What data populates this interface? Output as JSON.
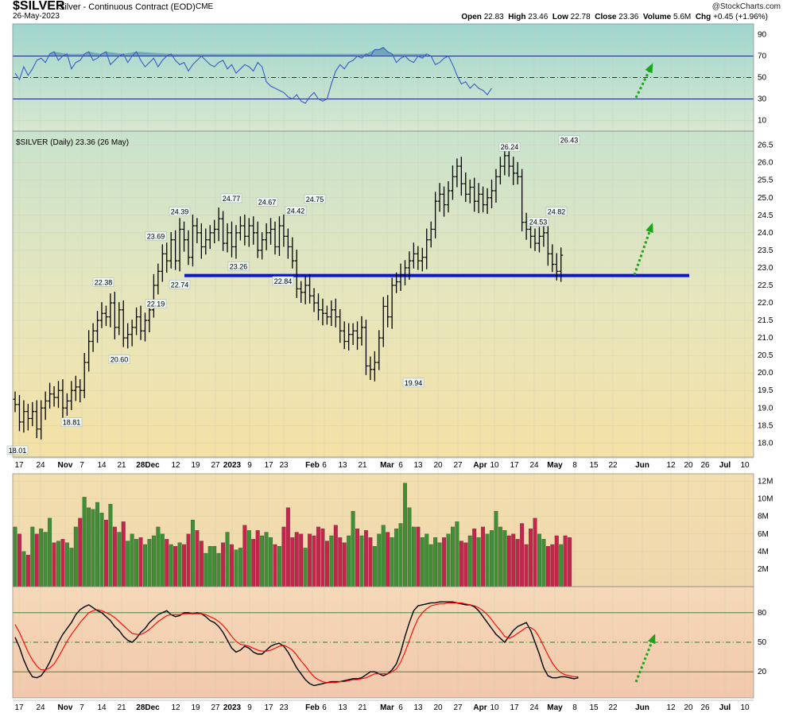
{
  "header": {
    "symbol": "$SILVER",
    "subtitle": "Silver - Continuous Contract (EOD)",
    "exchange": "CME",
    "date": "26-May-2023",
    "copyright": "@StockCharts.com",
    "stats": [
      {
        "label": "Open",
        "value": "22.83"
      },
      {
        "label": "High",
        "value": "23.46"
      },
      {
        "label": "Low",
        "value": "22.78"
      },
      {
        "label": "Close",
        "value": "23.36"
      },
      {
        "label": "Volume",
        "value": "5.6M"
      },
      {
        "label": "Chg",
        "value": "+0.45 (+1.96%)"
      }
    ]
  },
  "chart_data": [
    {
      "type": "line",
      "panel": "indicator",
      "yticks": [
        90,
        70,
        50,
        30,
        10
      ],
      "ylim": [
        0,
        100
      ],
      "reference_lines": [
        70,
        50,
        30
      ],
      "series": [
        {
          "values": [
            54,
            48,
            60,
            52,
            58,
            66,
            68,
            64,
            72,
            74,
            66,
            70,
            72,
            58,
            64,
            66,
            72,
            74,
            66,
            68,
            72,
            74,
            62,
            66,
            70,
            72,
            64,
            70,
            74,
            66,
            60,
            64,
            68,
            60,
            66,
            70,
            72,
            66,
            62,
            64,
            56,
            62,
            66,
            70,
            66,
            62,
            60,
            64,
            66,
            58,
            62,
            54,
            58,
            62,
            60,
            56,
            64,
            60,
            46,
            42,
            40,
            38,
            36,
            32,
            30,
            34,
            28,
            26,
            32,
            36,
            30,
            28,
            30,
            44,
            56,
            62,
            58,
            64,
            66,
            70,
            68,
            72,
            70,
            76,
            76,
            78,
            74,
            72,
            64,
            68,
            70,
            66,
            64,
            70,
            68,
            72,
            70,
            62,
            64,
            68,
            70,
            62,
            52,
            44,
            46,
            40,
            44,
            40,
            38,
            34,
            40
          ]
        }
      ]
    },
    {
      "type": "candlestick",
      "panel": "price",
      "title": "$SILVER (Daily) 23.36 (26 May)",
      "yticks": [
        26.5,
        26.0,
        25.5,
        25.0,
        24.5,
        24.0,
        23.5,
        23.0,
        22.5,
        22.0,
        21.5,
        21.0,
        20.5,
        20.0,
        19.5,
        19.0,
        18.5,
        18.0
      ],
      "ylim": [
        17.6,
        26.9
      ],
      "x_ticks": [
        "17",
        "24",
        "Nov",
        "7",
        "14",
        "21",
        "28Dec",
        "12",
        "19",
        "27",
        "2023",
        "9",
        "17",
        "23",
        "Feb",
        "6",
        "13",
        "21",
        "Mar",
        "6",
        "13",
        "20",
        "27",
        "Apr",
        "10",
        "17",
        "24",
        "May",
        "8",
        "15",
        "22",
        "Jun",
        "12",
        "20",
        "26",
        "Jul",
        "10"
      ],
      "close": [
        19.1,
        18.6,
        18.9,
        18.7,
        18.9,
        18.4,
        19.0,
        19.2,
        19.4,
        19.3,
        19.5,
        19.0,
        19.2,
        19.5,
        19.6,
        19.5,
        20.3,
        20.9,
        21.2,
        21.5,
        21.7,
        21.6,
        22.0,
        21.3,
        21.8,
        21.0,
        21.1,
        21.3,
        21.6,
        21.2,
        21.5,
        21.8,
        22.5,
        22.9,
        23.4,
        23.2,
        23.8,
        23.2,
        24.1,
        23.8,
        23.3,
        24.2,
        24.0,
        23.6,
        23.8,
        24.0,
        24.1,
        24.4,
        23.7,
        24.0,
        23.6,
        24.0,
        24.2,
        23.9,
        24.2,
        24.0,
        23.5,
        23.8,
        24.0,
        24.1,
        23.6,
        24.2,
        23.9,
        23.6,
        23.2,
        22.4,
        22.3,
        22.5,
        22.2,
        22.0,
        21.8,
        21.7,
        21.6,
        21.8,
        21.6,
        21.2,
        20.9,
        21.1,
        21.2,
        21.0,
        21.3,
        20.2,
        20.1,
        20.3,
        21.0,
        21.9,
        21.6,
        22.5,
        22.6,
        22.8,
        23.0,
        23.2,
        23.4,
        23.2,
        23.3,
        23.8,
        24.1,
        24.9,
        25.1,
        24.8,
        25.2,
        25.6,
        25.9,
        25.4,
        25.1,
        25.3,
        24.9,
        25.1,
        24.8,
        25.0,
        25.2,
        25.6,
        25.9,
        26.2,
        25.9,
        25.7,
        25.6,
        24.3,
        24.1,
        23.9,
        23.7,
        23.9,
        24.0,
        23.4,
        23.1,
        22.9,
        23.36
      ]
    },
    {
      "type": "bar",
      "panel": "volume",
      "yticks": [
        "12M",
        "10M",
        "8M",
        "6M",
        "4M",
        "2M"
      ],
      "ylim": [
        0,
        12.5
      ],
      "colors": {
        "up": "#3f8f35",
        "down": "#c8234b"
      },
      "values": [
        6.8,
        6.0,
        4.0,
        3.6,
        6.8,
        6.0,
        6.6,
        6.2,
        7.8,
        5.0,
        5.2,
        5.4,
        5.0,
        4.4,
        6.8,
        7.8,
        10.2,
        9.0,
        8.8,
        9.6,
        8.4,
        7.6,
        9.4,
        6.8,
        6.2,
        7.4,
        5.2,
        6.0,
        5.4,
        5.6,
        4.8,
        5.4,
        5.8,
        6.8,
        6.0,
        5.4,
        4.8,
        4.6,
        5.0,
        4.8,
        6.0,
        7.6,
        6.4,
        5.2,
        3.8,
        4.6,
        4.6,
        3.8,
        5.0,
        6.2,
        4.8,
        4.2,
        4.4,
        7.0,
        6.4,
        5.4,
        6.4,
        5.8,
        6.2,
        5.6,
        4.8,
        4.6,
        6.8,
        9.0,
        5.6,
        6.2,
        6.0,
        4.4,
        6.0,
        5.8,
        6.8,
        6.6,
        5.2,
        5.8,
        7.0,
        5.6,
        5.0,
        5.8,
        8.6,
        6.6,
        5.8,
        6.4,
        5.6,
        4.6,
        6.0,
        7.0,
        6.2,
        5.6,
        6.6,
        7.2,
        11.8,
        9.0,
        6.8,
        6.8,
        5.6,
        6.0,
        4.8,
        5.6,
        5.0,
        5.6,
        6.0,
        6.8,
        7.4,
        5.2,
        5.0,
        5.8,
        6.6,
        5.6,
        6.8,
        6.0,
        6.4,
        8.6,
        6.8,
        6.4,
        5.8,
        6.0,
        5.4,
        7.2,
        4.8,
        6.6,
        7.8,
        6.0,
        5.4,
        4.6,
        4.8,
        5.8,
        4.8,
        5.8,
        5.6
      ],
      "up": [
        true,
        false,
        true,
        false,
        true,
        false,
        true,
        true,
        true,
        false,
        true,
        false,
        true,
        true,
        true,
        false,
        true,
        true,
        true,
        true,
        true,
        false,
        true,
        false,
        true,
        false,
        true,
        true,
        true,
        false,
        true,
        true,
        true,
        true,
        true,
        false,
        true,
        false,
        true,
        false,
        false,
        true,
        false,
        false,
        true,
        true,
        true,
        true,
        false,
        true,
        false,
        true,
        true,
        false,
        true,
        false,
        false,
        true,
        true,
        true,
        false,
        true,
        false,
        false,
        false,
        false,
        false,
        true,
        false,
        false,
        false,
        false,
        false,
        true,
        false,
        false,
        false,
        true,
        true,
        false,
        true,
        false,
        false,
        true,
        true,
        true,
        false,
        true,
        true,
        true,
        true,
        true,
        true,
        false,
        true,
        true,
        true,
        true,
        true,
        false,
        true,
        true,
        true,
        false,
        false,
        true,
        false,
        true,
        false,
        true,
        true,
        true,
        true,
        true,
        false,
        false,
        false,
        false,
        false,
        false,
        false,
        true,
        true,
        false,
        false,
        false,
        true,
        false,
        false,
        false,
        true
      ]
    },
    {
      "type": "line",
      "panel": "indicator",
      "yticks": [
        80,
        50,
        20
      ],
      "ylim": [
        0,
        100
      ],
      "reference_lines": [
        80,
        50,
        20
      ],
      "series": [
        {
          "color": "#000000",
          "values": [
            55,
            45,
            32,
            22,
            15,
            14,
            16,
            22,
            30,
            40,
            50,
            58,
            64,
            70,
            78,
            83,
            86,
            88,
            85,
            82,
            80,
            76,
            72,
            66,
            62,
            56,
            52,
            50,
            54,
            60,
            64,
            70,
            74,
            78,
            80,
            82,
            78,
            76,
            77,
            80,
            80,
            79,
            80,
            79,
            76,
            72,
            70,
            66,
            60,
            52,
            44,
            40,
            42,
            46,
            44,
            40,
            38,
            38,
            42,
            46,
            48,
            49,
            46,
            40,
            32,
            24,
            18,
            12,
            8,
            6,
            7,
            8,
            9,
            10,
            10,
            10,
            11,
            12,
            13,
            13,
            14,
            17,
            20,
            20,
            18,
            16,
            18,
            22,
            28,
            40,
            56,
            70,
            82,
            87,
            88,
            89,
            90,
            90,
            91,
            91,
            91,
            91,
            90,
            89,
            88,
            88,
            86,
            82,
            76,
            70,
            64,
            58,
            54,
            50,
            56,
            62,
            66,
            68,
            70,
            62,
            50,
            38,
            24,
            16,
            14,
            14,
            15,
            15,
            14,
            13,
            14
          ]
        },
        {
          "color": "#ff0000",
          "values": [
            68,
            60,
            50,
            40,
            32,
            26,
            22,
            22,
            24,
            28,
            35,
            43,
            51,
            58,
            64,
            70,
            75,
            80,
            82,
            83,
            82,
            80,
            78,
            75,
            71,
            67,
            63,
            59,
            58,
            58,
            60,
            63,
            67,
            71,
            74,
            77,
            78,
            78,
            78,
            79,
            79,
            79,
            79,
            79,
            78,
            76,
            74,
            71,
            67,
            62,
            56,
            51,
            48,
            47,
            46,
            44,
            42,
            41,
            41,
            42,
            44,
            46,
            47,
            45,
            42,
            37,
            31,
            26,
            20,
            15,
            12,
            10,
            9,
            9,
            9,
            10,
            10,
            11,
            12,
            12,
            13,
            14,
            16,
            18,
            18,
            18,
            18,
            20,
            23,
            30,
            40,
            52,
            64,
            74,
            80,
            84,
            87,
            88,
            89,
            89,
            90,
            90,
            90,
            90,
            89,
            88,
            87,
            85,
            82,
            78,
            73,
            67,
            62,
            56,
            54,
            56,
            59,
            62,
            65,
            65,
            62,
            55,
            46,
            37,
            29,
            23,
            19,
            17,
            16,
            15,
            15
          ]
        }
      ]
    }
  ],
  "annotations": {
    "support_level": 22.78,
    "extension_end_label": "Jun 12",
    "price_labels": [
      {
        "text": "18.01",
        "x": "17",
        "y": 18.01
      },
      {
        "text": "18.81",
        "x": "Nov",
        "y": 18.81
      },
      {
        "text": "22.38",
        "x": "14",
        "y": 22.38
      },
      {
        "text": "20.60",
        "x": "21",
        "y": 20.6
      },
      {
        "text": "23.69",
        "x": "28Dec",
        "y": 23.69
      },
      {
        "text": "22.19",
        "x": "28Dec",
        "y": 22.19
      },
      {
        "text": "24.39",
        "x": "12",
        "y": 24.39
      },
      {
        "text": "22.74",
        "x": "12",
        "y": 22.74
      },
      {
        "text": "24.77",
        "x": "19",
        "y": 24.77
      },
      {
        "text": "23.26",
        "x": "27",
        "y": 23.26
      },
      {
        "text": "24.67",
        "x": "9",
        "y": 24.67
      },
      {
        "text": "24.42",
        "x": "17",
        "y": 24.42
      },
      {
        "text": "22.84",
        "x": "23",
        "y": 22.84
      },
      {
        "text": "24.75",
        "x": "Feb",
        "y": 24.75
      },
      {
        "text": "19.94",
        "x": "13",
        "y": 19.94
      },
      {
        "text": "26.24",
        "x": "17",
        "y": 26.24
      },
      {
        "text": "24.53",
        "x": "24",
        "y": 24.53
      },
      {
        "text": "24.82",
        "x": "May",
        "y": 24.82
      },
      {
        "text": "26.43",
        "x": "8",
        "y": 26.43
      }
    ],
    "arrows": [
      "indicator-up-arrow",
      "price-up-arrow",
      "stochastic-up-arrow"
    ]
  }
}
